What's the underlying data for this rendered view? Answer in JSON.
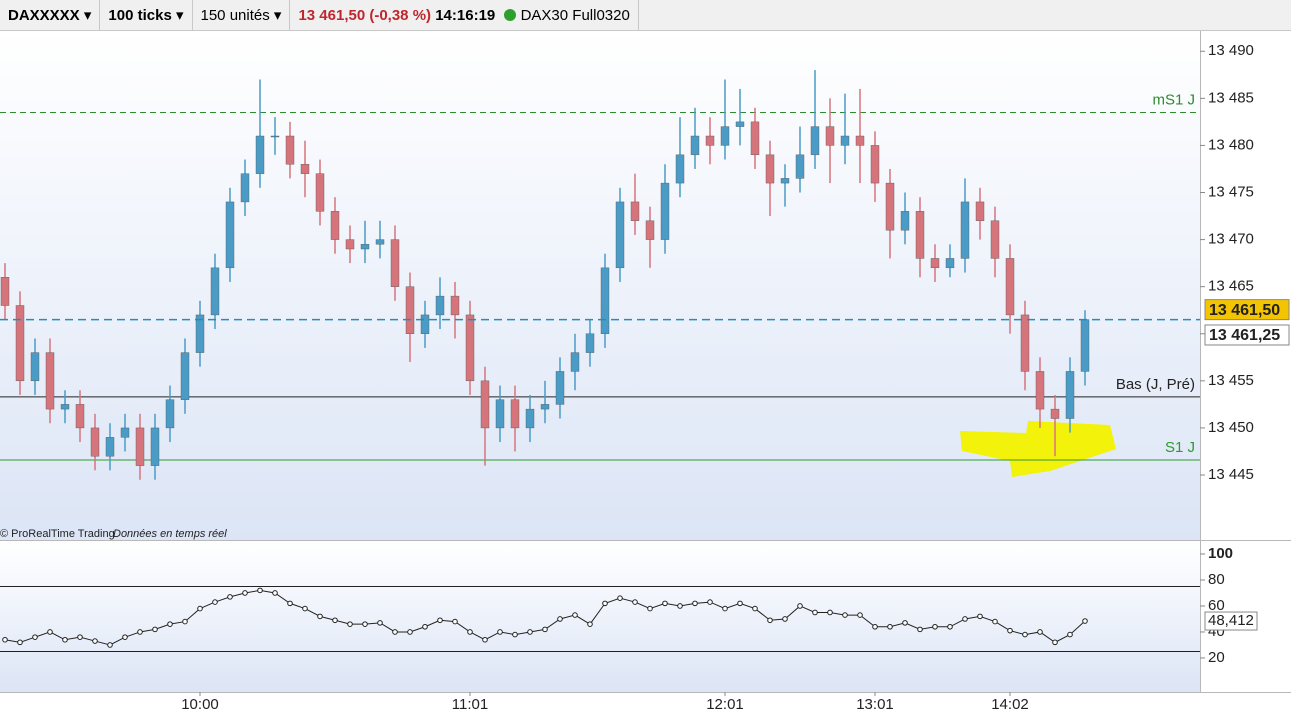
{
  "toolbar": {
    "instrument": "DAXXXXX",
    "period": "100 ticks",
    "units": "150 unités",
    "quote": "13 461,50 (-0,38 %)",
    "time": "14:16:19",
    "feed": "DAX30 Full0320"
  },
  "watermark": {
    "brand": "© ProRealTime Trading",
    "note": "Données en temps réel"
  },
  "chart_data": [
    {
      "type": "candlestick",
      "up_color": "#4a9cc6",
      "down_color": "#d6747c",
      "open": [
        13466,
        13463,
        13455,
        13458,
        13452,
        13452.5,
        13450,
        13447,
        13449,
        13450,
        13446,
        13450,
        13453,
        13458,
        13462,
        13467,
        13474,
        13477,
        13481,
        13481,
        13478,
        13477,
        13473,
        13470,
        13469,
        13469.5,
        13470,
        13465,
        13460,
        13462,
        13464,
        13462,
        13455,
        13450,
        13453,
        13450,
        13452,
        13452.5,
        13456,
        13458,
        13460,
        13467,
        13474,
        13472,
        13470,
        13476,
        13479,
        13481,
        13480,
        13482,
        13482.5,
        13479,
        13476,
        13476.5,
        13479,
        13482,
        13480,
        13481,
        13480,
        13476,
        13471,
        13473,
        13468,
        13467,
        13468,
        13474,
        13472,
        13468,
        13462,
        13456,
        13452,
        13451,
        13456
      ],
      "high": [
        13467.5,
        13464.5,
        13459.5,
        13459.5,
        13454,
        13454,
        13451.5,
        13450.5,
        13451.5,
        13451.5,
        13451.5,
        13454.5,
        13459.5,
        13463.5,
        13468.5,
        13475.5,
        13478.5,
        13487,
        13483,
        13482.5,
        13480.5,
        13478.5,
        13474.5,
        13471.5,
        13472,
        13472,
        13471.5,
        13466.5,
        13463.5,
        13466,
        13465.5,
        13463.5,
        13456.5,
        13454.5,
        13454.5,
        13453.5,
        13455,
        13457.5,
        13460,
        13461.5,
        13468.5,
        13475.5,
        13477,
        13473.5,
        13478,
        13483,
        13484,
        13483,
        13487,
        13486,
        13484,
        13480.5,
        13478,
        13482,
        13488,
        13485,
        13485.5,
        13486,
        13481.5,
        13477.5,
        13475,
        13474.5,
        13469.5,
        13469.5,
        13476.5,
        13475.5,
        13473.5,
        13469.5,
        13463.5,
        13457.5,
        13453.5,
        13457.5,
        13462.5
      ],
      "low": [
        13461.5,
        13453.5,
        13453.5,
        13450.5,
        13450.5,
        13448.5,
        13445.5,
        13445.5,
        13447.5,
        13444.5,
        13444.5,
        13448.5,
        13451.5,
        13456.5,
        13460.5,
        13465.5,
        13472.5,
        13475.5,
        13479,
        13476.5,
        13474.5,
        13471.5,
        13468.5,
        13467.5,
        13467.5,
        13468,
        13463.5,
        13457,
        13458.5,
        13460.5,
        13459.5,
        13453.5,
        13446,
        13448.5,
        13447.5,
        13448.5,
        13450.5,
        13451,
        13454,
        13456.5,
        13458.5,
        13465.5,
        13470.5,
        13467,
        13468.5,
        13474.5,
        13477.5,
        13478,
        13478.5,
        13480,
        13477.5,
        13472.5,
        13473.5,
        13475,
        13477.5,
        13476,
        13478,
        13476,
        13474,
        13468,
        13469.5,
        13466,
        13465.5,
        13466,
        13466.5,
        13470,
        13466,
        13460,
        13454,
        13450,
        13447,
        13449.5,
        13454.5
      ],
      "close": [
        13463,
        13455,
        13458,
        13452,
        13452.5,
        13450,
        13447,
        13449,
        13450,
        13446,
        13450,
        13453,
        13458,
        13462,
        13467,
        13474,
        13477,
        13481,
        13481,
        13478,
        13477,
        13473,
        13470,
        13469,
        13469.5,
        13470,
        13465,
        13460,
        13462,
        13464,
        13462,
        13455,
        13450,
        13453,
        13450,
        13452,
        13452.5,
        13456,
        13458,
        13460,
        13467,
        13474,
        13472,
        13470,
        13476,
        13479,
        13481,
        13480,
        13482,
        13482.5,
        13479,
        13476,
        13476.5,
        13479,
        13482,
        13480,
        13481,
        13480,
        13476,
        13471,
        13473,
        13468,
        13467,
        13468,
        13474,
        13472,
        13468,
        13462,
        13456,
        13452,
        13451,
        13456,
        13461.5
      ],
      "ylim": [
        13438.1,
        13492.15
      ],
      "yticks": [
        {
          "value": 13445,
          "label": "13 445"
        },
        {
          "value": 13450,
          "label": "13 450"
        },
        {
          "value": 13455,
          "label": "13 455"
        },
        {
          "value": 13460,
          "label": "13 460"
        },
        {
          "value": 13465,
          "label": "13 465"
        },
        {
          "value": 13470,
          "label": "13 470"
        },
        {
          "value": 13475,
          "label": "13 475"
        },
        {
          "value": 13480,
          "label": "13 480"
        },
        {
          "value": 13485,
          "label": "13 485"
        },
        {
          "value": 13490,
          "label": "13 490"
        }
      ],
      "xticks": [
        {
          "value": 13,
          "label": "10:00"
        },
        {
          "value": 31,
          "label": "11:01"
        },
        {
          "value": 48,
          "label": "12:01"
        },
        {
          "value": 58,
          "label": "13:01"
        },
        {
          "value": 67,
          "label": "14:02"
        }
      ],
      "levels": [
        {
          "name": "mS1 J",
          "value": 13483.5,
          "color": "#2e8b2e",
          "dashed": true
        },
        {
          "name": "Bas (J, Pré)",
          "value": 13453.3,
          "color": "#222222",
          "dashed": false
        },
        {
          "name": "S1 J",
          "value": 13446.6,
          "color": "#2e9a2e",
          "dashed": false
        }
      ],
      "price_labels": [
        {
          "value": 13461.5,
          "label": "13 461,50",
          "color": "#f5c400"
        },
        {
          "value": 13461.25,
          "label": "13 461,25",
          "color": "#ffffff"
        }
      ],
      "price_line_color": "#1f8fbf"
    },
    {
      "type": "line",
      "color": "#222222",
      "values": [
        34,
        32,
        36,
        40,
        34,
        36,
        33,
        30,
        36,
        40,
        42,
        46,
        48,
        58,
        63,
        67,
        70,
        72,
        70,
        62,
        58,
        52,
        49,
        46,
        46,
        47,
        40,
        40,
        44,
        49,
        48,
        40,
        34,
        40,
        38,
        40,
        42,
        50,
        53,
        46,
        62,
        66,
        63,
        58,
        62,
        60,
        62,
        63,
        58,
        62,
        58,
        49,
        50,
        60,
        55,
        55,
        53,
        53,
        44,
        44,
        47,
        42,
        44,
        44,
        50,
        52,
        48,
        41,
        38,
        40,
        32,
        38,
        48.412
      ],
      "current": {
        "value": 48.412,
        "label": "48,412"
      },
      "levels": [
        75,
        25
      ],
      "ylim": [
        -6.2,
        110
      ],
      "yticks": [
        20,
        40,
        60,
        80,
        100
      ]
    }
  ]
}
